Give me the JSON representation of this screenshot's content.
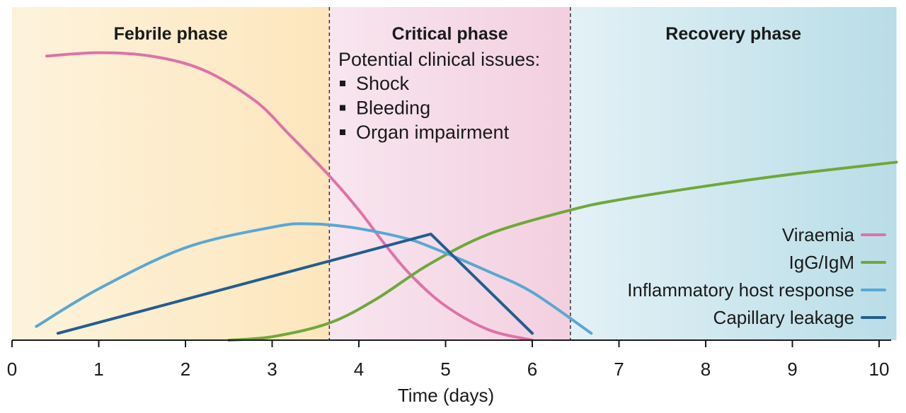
{
  "chart_data": {
    "type": "line",
    "xlabel": "Time (days)",
    "xlim": [
      0,
      10.2
    ],
    "ylim": [
      0,
      1
    ],
    "x_ticks": [
      "0",
      "1",
      "2",
      "3",
      "4",
      "5",
      "6",
      "7",
      "8",
      "9",
      "10"
    ],
    "grid": false,
    "legend_position": "right",
    "phases": [
      {
        "name": "Febrile phase",
        "start": 0,
        "end": 3.66,
        "color_from": "#fdf3dc",
        "color_to": "#fde6bd"
      },
      {
        "name": "Critical phase",
        "start": 3.66,
        "end": 6.44,
        "color_from": "#f8e6ef",
        "color_to": "#f3cfdf"
      },
      {
        "name": "Recovery phase",
        "start": 6.44,
        "end": 10.2,
        "color_from": "#e3f1f6",
        "color_to": "#b9dde7"
      }
    ],
    "annotation": {
      "heading": "Potential clinical issues:",
      "items": [
        "Shock",
        "Bleeding",
        "Organ impairment"
      ]
    },
    "series": [
      {
        "name": "Viraemia",
        "color": "#de72a8",
        "points": [
          [
            0.4,
            0.83
          ],
          [
            1,
            0.84
          ],
          [
            1.6,
            0.83
          ],
          [
            2.2,
            0.79
          ],
          [
            2.8,
            0.7
          ],
          [
            3.2,
            0.6
          ],
          [
            3.66,
            0.48
          ],
          [
            4,
            0.38
          ],
          [
            4.3,
            0.28
          ],
          [
            4.6,
            0.19
          ],
          [
            5,
            0.1
          ],
          [
            5.5,
            0.03
          ],
          [
            6,
            0.0
          ]
        ]
      },
      {
        "name": "IgG/IgM",
        "color": "#6fa83a",
        "points": [
          [
            2.5,
            0.0
          ],
          [
            3,
            0.01
          ],
          [
            3.66,
            0.05
          ],
          [
            4.2,
            0.12
          ],
          [
            4.8,
            0.22
          ],
          [
            5.5,
            0.31
          ],
          [
            6.44,
            0.38
          ],
          [
            7,
            0.41
          ],
          [
            8,
            0.45
          ],
          [
            9,
            0.485
          ],
          [
            10.2,
            0.52
          ]
        ]
      },
      {
        "name": "Inflammatory host response",
        "color": "#5aa7d3",
        "points": [
          [
            0.28,
            0.04
          ],
          [
            1,
            0.15
          ],
          [
            2,
            0.27
          ],
          [
            3,
            0.33
          ],
          [
            3.4,
            0.34
          ],
          [
            3.9,
            0.33
          ],
          [
            4.5,
            0.3
          ],
          [
            4.85,
            0.27
          ],
          [
            5.5,
            0.2
          ],
          [
            6,
            0.14
          ],
          [
            6.68,
            0.02
          ]
        ]
      },
      {
        "name": "Capillary leakage",
        "color": "#225e8f",
        "points": [
          [
            0.53,
            0.02
          ],
          [
            4.83,
            0.31
          ],
          [
            6,
            0.02
          ]
        ]
      }
    ]
  }
}
